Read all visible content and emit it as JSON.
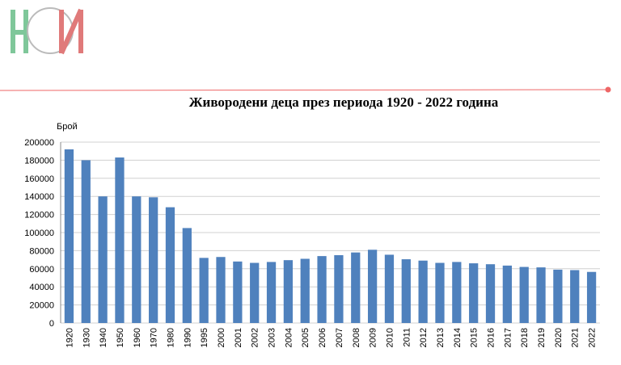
{
  "chart_data": {
    "type": "bar",
    "title": "Живородени деца през периода 1920 - 2022 година",
    "y_label": "Брой",
    "categories": [
      "1920",
      "1930",
      "1940",
      "1950",
      "1960",
      "1970",
      "1980",
      "1990",
      "1995",
      "2000",
      "2001",
      "2002",
      "2003",
      "2004",
      "2005",
      "2006",
      "2007",
      "2008",
      "2009",
      "2010",
      "2011",
      "2012",
      "2013",
      "2014",
      "2015",
      "2016",
      "2017",
      "2018",
      "2019",
      "2020",
      "2021",
      "2022"
    ],
    "values": [
      192000,
      180000,
      140000,
      183000,
      140000,
      139000,
      128000,
      105000,
      72000,
      73000,
      68000,
      66500,
      67500,
      69500,
      71000,
      74000,
      75000,
      78000,
      81000,
      75500,
      70500,
      69000,
      66500,
      67500,
      66000,
      65000,
      63500,
      62000,
      61500,
      59000,
      58500,
      56500
    ],
    "color": "#4f81bd",
    "ylim": [
      0,
      200000
    ],
    "yticks": [
      0,
      20000,
      40000,
      60000,
      80000,
      100000,
      120000,
      140000,
      160000,
      180000,
      200000
    ],
    "grid": true
  }
}
